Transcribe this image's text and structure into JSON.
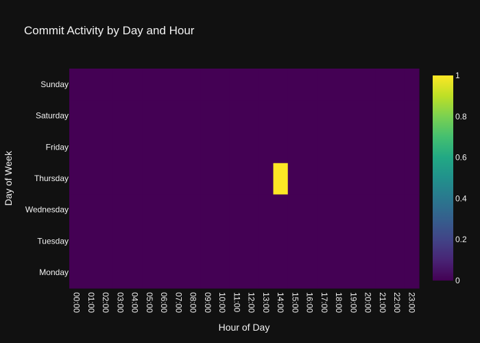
{
  "chart_data": {
    "type": "heatmap",
    "title": "Commit Activity by Day and Hour",
    "xlabel": "Hour of Day",
    "ylabel": "Day of Week",
    "x": [
      "00:00",
      "01:00",
      "02:00",
      "03:00",
      "04:00",
      "05:00",
      "06:00",
      "07:00",
      "08:00",
      "09:00",
      "10:00",
      "11:00",
      "12:00",
      "13:00",
      "14:00",
      "15:00",
      "16:00",
      "17:00",
      "18:00",
      "19:00",
      "20:00",
      "21:00",
      "22:00",
      "23:00"
    ],
    "y": [
      "Monday",
      "Tuesday",
      "Wednesday",
      "Thursday",
      "Friday",
      "Saturday",
      "Sunday"
    ],
    "z": [
      [
        0,
        0,
        0,
        0,
        0,
        0,
        0,
        0,
        0,
        0,
        0,
        0,
        0,
        0,
        0,
        0,
        0,
        0,
        0,
        0,
        0,
        0,
        0,
        0
      ],
      [
        0,
        0,
        0,
        0,
        0,
        0,
        0,
        0,
        0,
        0,
        0,
        0,
        0,
        0,
        0,
        0,
        0,
        0,
        0,
        0,
        0,
        0,
        0,
        0
      ],
      [
        0,
        0,
        0,
        0,
        0,
        0,
        0,
        0,
        0,
        0,
        0,
        0,
        0,
        0,
        0,
        0,
        0,
        0,
        0,
        0,
        0,
        0,
        0,
        0
      ],
      [
        0,
        0,
        0,
        0,
        0,
        0,
        0,
        0,
        0,
        0,
        0,
        0,
        0,
        0,
        1,
        0,
        0,
        0,
        0,
        0,
        0,
        0,
        0,
        0
      ],
      [
        0,
        0,
        0,
        0,
        0,
        0,
        0,
        0,
        0,
        0,
        0,
        0,
        0,
        0,
        0,
        0,
        0,
        0,
        0,
        0,
        0,
        0,
        0,
        0
      ],
      [
        0,
        0,
        0,
        0,
        0,
        0,
        0,
        0,
        0,
        0,
        0,
        0,
        0,
        0,
        0,
        0,
        0,
        0,
        0,
        0,
        0,
        0,
        0,
        0
      ],
      [
        0,
        0,
        0,
        0,
        0,
        0,
        0,
        0,
        0,
        0,
        0,
        0,
        0,
        0,
        0,
        0,
        0,
        0,
        0,
        0,
        0,
        0,
        0,
        0
      ]
    ],
    "zlim": [
      0,
      1
    ],
    "colorscale": "viridis",
    "colorbar_ticks": [
      "0",
      "0.2",
      "0.4",
      "0.6",
      "0.8",
      "1"
    ],
    "colorbar_tick_values": [
      0,
      0.2,
      0.4,
      0.6,
      0.8,
      1
    ],
    "colors": {
      "background": "#111111",
      "low": "#440154",
      "high": "#fde725"
    }
  }
}
